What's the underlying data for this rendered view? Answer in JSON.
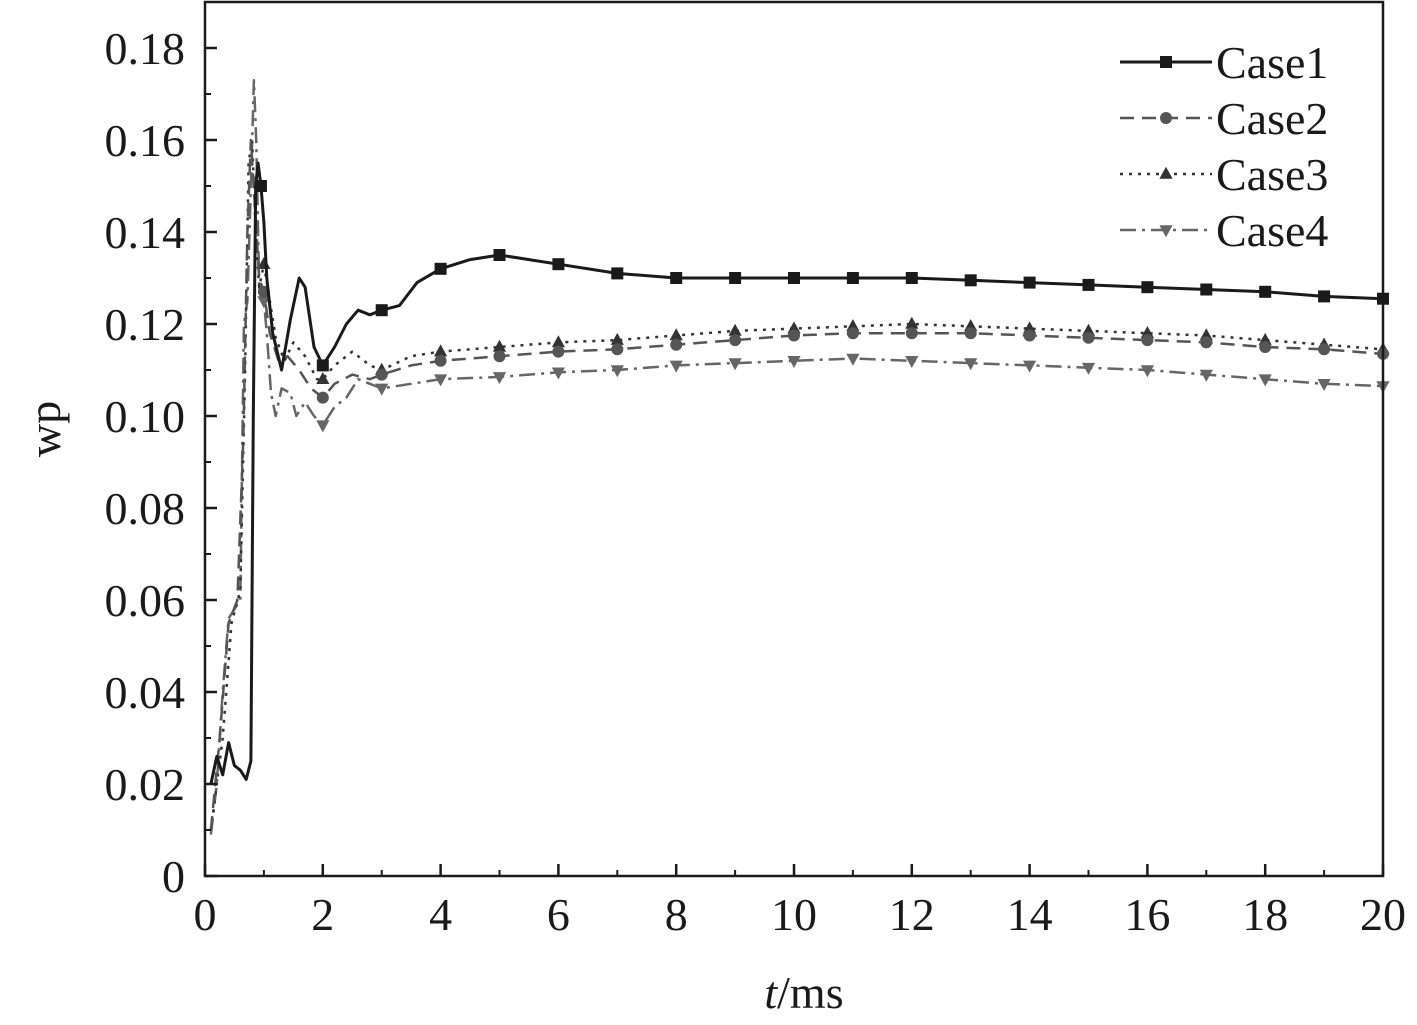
{
  "chart_data": {
    "type": "line",
    "title": "",
    "xlabel_italic": "t",
    "xlabel_unit": "/ms",
    "ylabel": "wp",
    "xlim": [
      0,
      20
    ],
    "ylim": [
      0,
      0.19
    ],
    "x_ticks": [
      0,
      2,
      4,
      6,
      8,
      10,
      12,
      14,
      16,
      18,
      20
    ],
    "y_ticks": [
      0,
      0.02,
      0.04,
      0.06,
      0.08,
      0.1,
      0.12,
      0.14,
      0.16,
      0.18
    ],
    "y_tick_labels": [
      "0",
      "0.02",
      "0.04",
      "0.06",
      "0.08",
      "0.10",
      "0.12",
      "0.14",
      "0.16",
      "0.18"
    ],
    "x_tick_labels": [
      "0",
      "2",
      "4",
      "6",
      "8",
      "10",
      "12",
      "14",
      "16",
      "18",
      "20"
    ],
    "grid": false,
    "legend_position": "top-right",
    "series": [
      {
        "name": "Case1",
        "color": "#1a1a1a",
        "dash": "solid",
        "marker": "square",
        "points": [
          [
            0.1,
            0.02
          ],
          [
            0.2,
            0.026
          ],
          [
            0.3,
            0.022
          ],
          [
            0.4,
            0.029
          ],
          [
            0.5,
            0.024
          ],
          [
            0.6,
            0.023
          ],
          [
            0.7,
            0.021
          ],
          [
            0.78,
            0.025
          ],
          [
            0.82,
            0.1
          ],
          [
            0.86,
            0.15
          ],
          [
            0.9,
            0.155
          ],
          [
            0.95,
            0.15
          ],
          [
            1.0,
            0.142
          ],
          [
            1.05,
            0.13
          ],
          [
            1.15,
            0.118
          ],
          [
            1.3,
            0.11
          ],
          [
            1.45,
            0.121
          ],
          [
            1.6,
            0.13
          ],
          [
            1.7,
            0.128
          ],
          [
            1.85,
            0.115
          ],
          [
            2.0,
            0.111
          ],
          [
            2.2,
            0.115
          ],
          [
            2.4,
            0.12
          ],
          [
            2.6,
            0.123
          ],
          [
            2.8,
            0.122
          ],
          [
            3.0,
            0.123
          ],
          [
            3.3,
            0.124
          ],
          [
            3.6,
            0.129
          ],
          [
            4.0,
            0.132
          ],
          [
            4.5,
            0.134
          ],
          [
            5.0,
            0.135
          ],
          [
            5.5,
            0.134
          ],
          [
            6.0,
            0.133
          ],
          [
            7.0,
            0.131
          ],
          [
            8.0,
            0.13
          ],
          [
            9.0,
            0.13
          ],
          [
            10.0,
            0.13
          ],
          [
            11.0,
            0.13
          ],
          [
            12.0,
            0.13
          ],
          [
            13.0,
            0.1295
          ],
          [
            14.0,
            0.129
          ],
          [
            15.0,
            0.1285
          ],
          [
            16.0,
            0.128
          ],
          [
            17.0,
            0.1275
          ],
          [
            18.0,
            0.127
          ],
          [
            19.0,
            0.126
          ],
          [
            20.0,
            0.1255
          ]
        ],
        "marker_x": [
          0.95,
          2,
          3,
          4,
          5,
          6,
          7,
          8,
          9,
          10,
          11,
          12,
          13,
          14,
          15,
          16,
          17,
          18,
          19,
          20
        ]
      },
      {
        "name": "Case2",
        "color": "#555555",
        "dash": "dashed",
        "marker": "circle",
        "points": [
          [
            0.1,
            0.01
          ],
          [
            0.25,
            0.03
          ],
          [
            0.4,
            0.055
          ],
          [
            0.55,
            0.06
          ],
          [
            0.65,
            0.095
          ],
          [
            0.72,
            0.14
          ],
          [
            0.78,
            0.16
          ],
          [
            0.85,
            0.145
          ],
          [
            0.92,
            0.13
          ],
          [
            1.0,
            0.127
          ],
          [
            1.1,
            0.118
          ],
          [
            1.25,
            0.112
          ],
          [
            1.4,
            0.113
          ],
          [
            1.6,
            0.11
          ],
          [
            1.8,
            0.106
          ],
          [
            2.0,
            0.104
          ],
          [
            2.2,
            0.107
          ],
          [
            2.5,
            0.109
          ],
          [
            2.8,
            0.108
          ],
          [
            3.0,
            0.109
          ],
          [
            3.5,
            0.111
          ],
          [
            4.0,
            0.112
          ],
          [
            5.0,
            0.113
          ],
          [
            6.0,
            0.114
          ],
          [
            7.0,
            0.1145
          ],
          [
            8.0,
            0.1155
          ],
          [
            9.0,
            0.1165
          ],
          [
            10.0,
            0.1175
          ],
          [
            11.0,
            0.118
          ],
          [
            12.0,
            0.118
          ],
          [
            13.0,
            0.118
          ],
          [
            14.0,
            0.1175
          ],
          [
            15.0,
            0.117
          ],
          [
            16.0,
            0.1165
          ],
          [
            17.0,
            0.116
          ],
          [
            18.0,
            0.115
          ],
          [
            19.0,
            0.1145
          ],
          [
            20.0,
            0.1135
          ]
        ],
        "marker_x": [
          1,
          2,
          3,
          4,
          5,
          6,
          7,
          8,
          9,
          10,
          11,
          12,
          13,
          14,
          15,
          16,
          17,
          18,
          19,
          20
        ]
      },
      {
        "name": "Case3",
        "color": "#333333",
        "dash": "dotted",
        "marker": "triangle-up",
        "points": [
          [
            0.1,
            0.01
          ],
          [
            0.3,
            0.03
          ],
          [
            0.45,
            0.055
          ],
          [
            0.6,
            0.062
          ],
          [
            0.68,
            0.11
          ],
          [
            0.74,
            0.155
          ],
          [
            0.8,
            0.16
          ],
          [
            0.86,
            0.14
          ],
          [
            0.92,
            0.128
          ],
          [
            1.0,
            0.133
          ],
          [
            1.1,
            0.125
          ],
          [
            1.2,
            0.117
          ],
          [
            1.35,
            0.112
          ],
          [
            1.5,
            0.116
          ],
          [
            1.7,
            0.113
          ],
          [
            1.9,
            0.108
          ],
          [
            2.0,
            0.108
          ],
          [
            2.2,
            0.111
          ],
          [
            2.5,
            0.114
          ],
          [
            2.8,
            0.111
          ],
          [
            3.0,
            0.11
          ],
          [
            3.5,
            0.113
          ],
          [
            4.0,
            0.114
          ],
          [
            5.0,
            0.115
          ],
          [
            6.0,
            0.116
          ],
          [
            7.0,
            0.1165
          ],
          [
            8.0,
            0.1175
          ],
          [
            9.0,
            0.1185
          ],
          [
            10.0,
            0.119
          ],
          [
            11.0,
            0.1195
          ],
          [
            12.0,
            0.12
          ],
          [
            13.0,
            0.1195
          ],
          [
            14.0,
            0.119
          ],
          [
            15.0,
            0.1185
          ],
          [
            16.0,
            0.118
          ],
          [
            17.0,
            0.1175
          ],
          [
            18.0,
            0.1165
          ],
          [
            19.0,
            0.1155
          ],
          [
            20.0,
            0.1145
          ]
        ],
        "marker_x": [
          1,
          2,
          3,
          4,
          5,
          6,
          7,
          8,
          9,
          10,
          11,
          12,
          13,
          14,
          15,
          16,
          17,
          18,
          19,
          20
        ]
      },
      {
        "name": "Case4",
        "color": "#666666",
        "dash": "dashdot",
        "marker": "triangle-down",
        "points": [
          [
            0.1,
            0.009
          ],
          [
            0.2,
            0.02
          ],
          [
            0.3,
            0.04
          ],
          [
            0.4,
            0.056
          ],
          [
            0.5,
            0.058
          ],
          [
            0.6,
            0.06
          ],
          [
            0.66,
            0.12
          ],
          [
            0.72,
            0.125
          ],
          [
            0.78,
            0.15
          ],
          [
            0.83,
            0.173
          ],
          [
            0.87,
            0.16
          ],
          [
            0.92,
            0.128
          ],
          [
            1.0,
            0.125
          ],
          [
            1.05,
            0.118
          ],
          [
            1.12,
            0.105
          ],
          [
            1.2,
            0.1
          ],
          [
            1.3,
            0.106
          ],
          [
            1.45,
            0.105
          ],
          [
            1.55,
            0.1
          ],
          [
            1.7,
            0.103
          ],
          [
            1.85,
            0.1
          ],
          [
            2.0,
            0.098
          ],
          [
            2.2,
            0.102
          ],
          [
            2.4,
            0.104
          ],
          [
            2.6,
            0.108
          ],
          [
            2.8,
            0.107
          ],
          [
            3.0,
            0.106
          ],
          [
            3.5,
            0.107
          ],
          [
            4.0,
            0.108
          ],
          [
            5.0,
            0.1085
          ],
          [
            6.0,
            0.1095
          ],
          [
            7.0,
            0.11
          ],
          [
            8.0,
            0.111
          ],
          [
            9.0,
            0.1115
          ],
          [
            10.0,
            0.112
          ],
          [
            11.0,
            0.1125
          ],
          [
            12.0,
            0.112
          ],
          [
            13.0,
            0.1115
          ],
          [
            14.0,
            0.111
          ],
          [
            15.0,
            0.1105
          ],
          [
            16.0,
            0.11
          ],
          [
            17.0,
            0.109
          ],
          [
            18.0,
            0.108
          ],
          [
            19.0,
            0.107
          ],
          [
            20.0,
            0.1065
          ]
        ],
        "marker_x": [
          1,
          2,
          3,
          4,
          5,
          6,
          7,
          8,
          9,
          10,
          11,
          12,
          13,
          14,
          15,
          16,
          17,
          18,
          19,
          20
        ]
      }
    ]
  }
}
